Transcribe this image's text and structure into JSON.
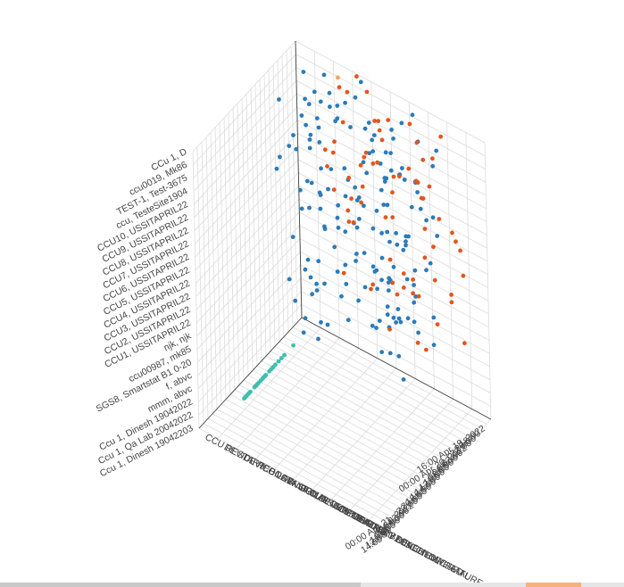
{
  "chart_data": {
    "type": "scatter",
    "series": [
      {
        "color": "#2b7bba",
        "points": 170
      },
      {
        "color": "#e3561e",
        "points": 70
      },
      {
        "color": "#f7a35c",
        "points": 1
      },
      {
        "color": "#3dbfb0",
        "points": 28
      }
    ],
    "axes": {
      "site": {
        "ticks": [
          "CCu 1, D",
          "ccu0019, Mk86",
          "TEST-1, Test-3675",
          "ccu, TesteSite1904",
          "CCU10, USSITAPRIL22",
          "CCU9, USSITAPRIL22",
          "CCU8, USSITAPRIL22",
          "CCU7, USSITAPRIL22",
          "CCU6, USSITAPRIL22",
          "CCU5, USSITAPRIL22",
          "CCU4, USSITAPRIL22",
          "CCU3, USSITAPRIL22",
          "CCU2, USSITAPRIL22",
          "CCU1, USSITAPRIL22",
          "njk, njk",
          "ccu00987, mk85",
          "SGS8, Smartstat B1 0-20",
          "f, abvc",
          "mmm, abvc",
          "Ccu 1, Dinesh 19042022",
          "Ccu 1, Qa Lab 20042022",
          "Ccu 1, Dinesh 19042203"
        ]
      },
      "time": {
        "ticks": [
          "16:00 Apr 19, 2022",
          "18:00",
          "20:00",
          "22:00",
          "00:00 Apr 20, 2022",
          "02:00",
          "04:00",
          "06:00",
          "08:00",
          "10:00",
          "12:00",
          "14:00",
          "16:00",
          "18:00",
          "20:00",
          "22:00",
          "00:00 Apr 21, 2022",
          "02:00",
          "04:00",
          "06:00",
          "08:00",
          "10:00",
          "12:00",
          "14:00"
        ]
      },
      "alert": {
        "ticks": [
          "ZONE TEMPERATURE DEAD",
          "CCU DISCONNECTED",
          "BATTERY LEVEL LOW FATAL",
          "CM DEAD",
          "DEVICE DEAD",
          "BUILDING TEMP LIMIT BREACH",
          "ABNORMAL CUR TEMP",
          "CONSTANT CUR TEMP",
          "DEVICE LOW SIGNAL",
          "DEVICE REBOOT",
          "CCU RESTART"
        ]
      }
    },
    "grid": true,
    "legend": "none"
  },
  "scrollbar": {
    "accent_color": "#f7b27a"
  }
}
